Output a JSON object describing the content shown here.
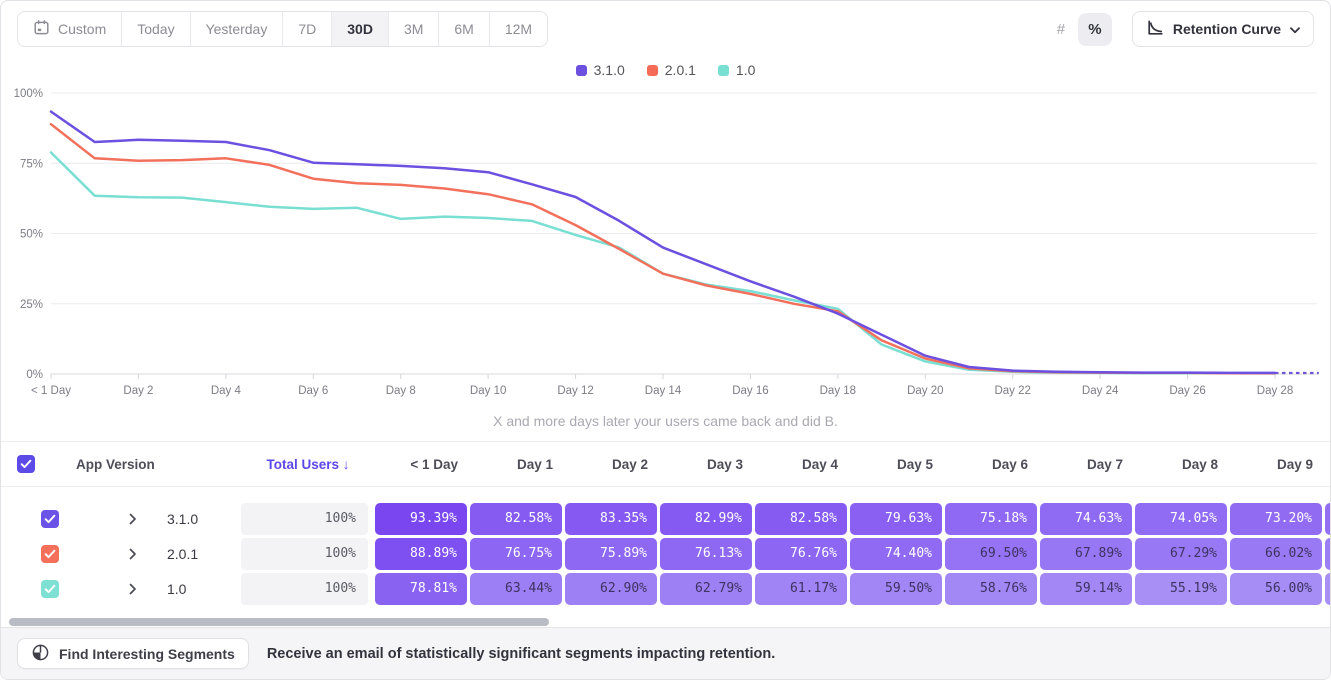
{
  "toolbar": {
    "date_ranges": [
      {
        "label": "Custom",
        "icon": "calendar-icon",
        "active": false
      },
      {
        "label": "Today",
        "active": false
      },
      {
        "label": "Yesterday",
        "active": false
      },
      {
        "label": "7D",
        "active": false
      },
      {
        "label": "30D",
        "active": true
      },
      {
        "label": "3M",
        "active": false
      },
      {
        "label": "6M",
        "active": false
      },
      {
        "label": "12M",
        "active": false
      }
    ],
    "value_format": [
      {
        "label": "#",
        "name": "absolute",
        "active": false
      },
      {
        "label": "%",
        "name": "percentage",
        "active": true
      }
    ],
    "chart_type": {
      "label": "Retention Curve",
      "icon": "retention-curve-icon",
      "chevron": "chevron-down-icon"
    }
  },
  "legend": [
    {
      "label": "3.1.0",
      "color": "#6C50E0"
    },
    {
      "label": "2.0.1",
      "color": "#F56B57"
    },
    {
      "label": "1.0",
      "color": "#79DFD2"
    }
  ],
  "chart_data": {
    "type": "line",
    "subtitle": "X and more days later your users came back and did B.",
    "x_unit": "days since first use",
    "xlim_days": [
      0,
      29
    ],
    "ylim": [
      0,
      100
    ],
    "grid": "horizontal",
    "legend_position": "top-center",
    "y_ticks": [
      {
        "value": 0,
        "label": "0%"
      },
      {
        "value": 25,
        "label": "25%"
      },
      {
        "value": 50,
        "label": "50%"
      },
      {
        "value": 75,
        "label": "75%"
      },
      {
        "value": 100,
        "label": "100%"
      }
    ],
    "x_ticks": [
      {
        "day": 0,
        "label": "< 1 Day"
      },
      {
        "day": 2,
        "label": "Day 2"
      },
      {
        "day": 4,
        "label": "Day 4"
      },
      {
        "day": 6,
        "label": "Day 6"
      },
      {
        "day": 8,
        "label": "Day 8"
      },
      {
        "day": 10,
        "label": "Day 10"
      },
      {
        "day": 12,
        "label": "Day 12"
      },
      {
        "day": 14,
        "label": "Day 14"
      },
      {
        "day": 16,
        "label": "Day 16"
      },
      {
        "day": 18,
        "label": "Day 18"
      },
      {
        "day": 20,
        "label": "Day 20"
      },
      {
        "day": 22,
        "label": "Day 22"
      },
      {
        "day": 24,
        "label": "Day 24"
      },
      {
        "day": 26,
        "label": "Day 26"
      },
      {
        "day": 28,
        "label": "Day 28"
      }
    ],
    "series": [
      {
        "name": "3.1.0",
        "color": "#6C50E0",
        "values": [
          93.39,
          82.58,
          83.35,
          82.99,
          82.58,
          79.63,
          75.18,
          74.63,
          74.05,
          73.2,
          71.8,
          67.5,
          63.0,
          54.5,
          45.0,
          39.0,
          33.0,
          27.5,
          21.5,
          14.0,
          6.5,
          2.5,
          1.2,
          0.8,
          0.6,
          0.5,
          0.5,
          0.4,
          0.4
        ],
        "dashed_tail": {
          "from_day": 28,
          "to_day": 29
        }
      },
      {
        "name": "2.0.1",
        "color": "#F2705C",
        "values": [
          88.89,
          76.75,
          75.89,
          76.13,
          76.76,
          74.4,
          69.5,
          67.89,
          67.29,
          66.02,
          64.0,
          60.4,
          53.0,
          44.5,
          35.7,
          31.5,
          28.5,
          25.0,
          22.3,
          12.0,
          5.5,
          2.0,
          1.0,
          0.6,
          0.5,
          0.4,
          0.4,
          0.3,
          0.3
        ],
        "dashed_tail": {
          "from_day": 28,
          "to_day": 29
        }
      },
      {
        "name": "1.0",
        "color": "#79DFD2",
        "values": [
          78.81,
          63.44,
          62.9,
          62.79,
          61.17,
          59.5,
          58.76,
          59.14,
          55.19,
          56.0,
          55.5,
          54.5,
          49.5,
          45.0,
          35.7,
          31.8,
          29.5,
          26.2,
          23.2,
          10.5,
          4.5,
          1.5,
          0.8,
          0.5,
          0.4,
          0.3,
          0.3,
          0.3,
          0.2
        ],
        "dashed_tail": {
          "from_day": 28,
          "to_day": 29
        }
      }
    ]
  },
  "table": {
    "select_all_color": "#5C4BE6",
    "columns": {
      "app_version": "App Version",
      "total_users": "Total Users",
      "sort_arrow": "↓",
      "days": [
        "< 1 Day",
        "Day 1",
        "Day 2",
        "Day 3",
        "Day 4",
        "Day 5",
        "Day 6",
        "Day 7",
        "Day 8",
        "Day 9"
      ]
    },
    "cell_palette": {
      "low": "#A78FF6",
      "high": "#7743F0",
      "low_value": 55,
      "high_value": 95,
      "white_text_min": 72,
      "dark_text": "#3E3360"
    },
    "rows": [
      {
        "name": "3.1.0",
        "checkbox_color": "#6C53E8",
        "total": "100%",
        "cells": [
          "93.39%",
          "82.58%",
          "83.35%",
          "82.99%",
          "82.58%",
          "79.63%",
          "75.18%",
          "74.63%",
          "74.05%",
          "73.20%"
        ]
      },
      {
        "name": "2.0.1",
        "checkbox_color": "#F4705B",
        "total": "100%",
        "cells": [
          "88.89%",
          "76.75%",
          "75.89%",
          "76.13%",
          "76.76%",
          "74.40%",
          "69.50%",
          "67.89%",
          "67.29%",
          "66.02%"
        ]
      },
      {
        "name": "1.0",
        "checkbox_color": "#7EE0D3",
        "total": "100%",
        "cells": [
          "78.81%",
          "63.44%",
          "62.90%",
          "62.79%",
          "61.17%",
          "59.50%",
          "58.76%",
          "59.14%",
          "55.19%",
          "56.00%"
        ]
      }
    ]
  },
  "footer": {
    "button_label": "Find Interesting Segments",
    "button_icon": "segments-icon",
    "message": "Receive an email of statistically significant segments impacting retention."
  }
}
